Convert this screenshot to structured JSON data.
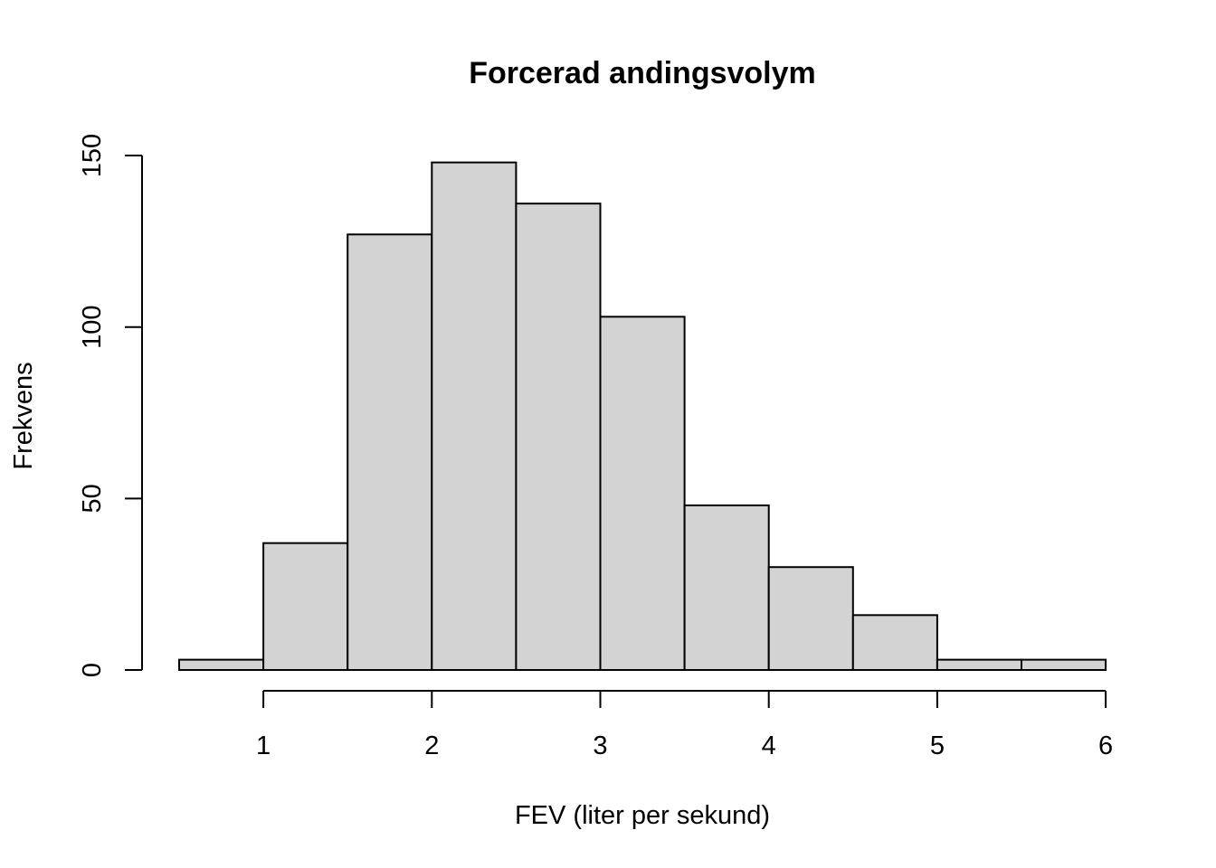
{
  "chart_data": {
    "type": "bar",
    "title": "Forcerad andingsvolym",
    "xlabel": "FEV (liter per sekund)",
    "ylabel": "Frekvens",
    "bins": [
      {
        "x0": 0.5,
        "x1": 1.0,
        "count": 3
      },
      {
        "x0": 1.0,
        "x1": 1.5,
        "count": 37
      },
      {
        "x0": 1.5,
        "x1": 2.0,
        "count": 127
      },
      {
        "x0": 2.0,
        "x1": 2.5,
        "count": 148
      },
      {
        "x0": 2.5,
        "x1": 3.0,
        "count": 136
      },
      {
        "x0": 3.0,
        "x1": 3.5,
        "count": 103
      },
      {
        "x0": 3.5,
        "x1": 4.0,
        "count": 48
      },
      {
        "x0": 4.0,
        "x1": 4.5,
        "count": 30
      },
      {
        "x0": 4.5,
        "x1": 5.0,
        "count": 16
      },
      {
        "x0": 5.0,
        "x1": 5.5,
        "count": 3
      },
      {
        "x0": 5.5,
        "x1": 6.0,
        "count": 3
      }
    ],
    "xticks": [
      "1",
      "2",
      "3",
      "4",
      "5",
      "6"
    ],
    "yticks": [
      "0",
      "50",
      "100",
      "150"
    ],
    "xlim": [
      0.5,
      6.0
    ],
    "ylim": [
      0,
      150
    ],
    "grid": false,
    "colors": {
      "bar_fill": "#d3d3d3",
      "bar_stroke": "#000000"
    }
  }
}
